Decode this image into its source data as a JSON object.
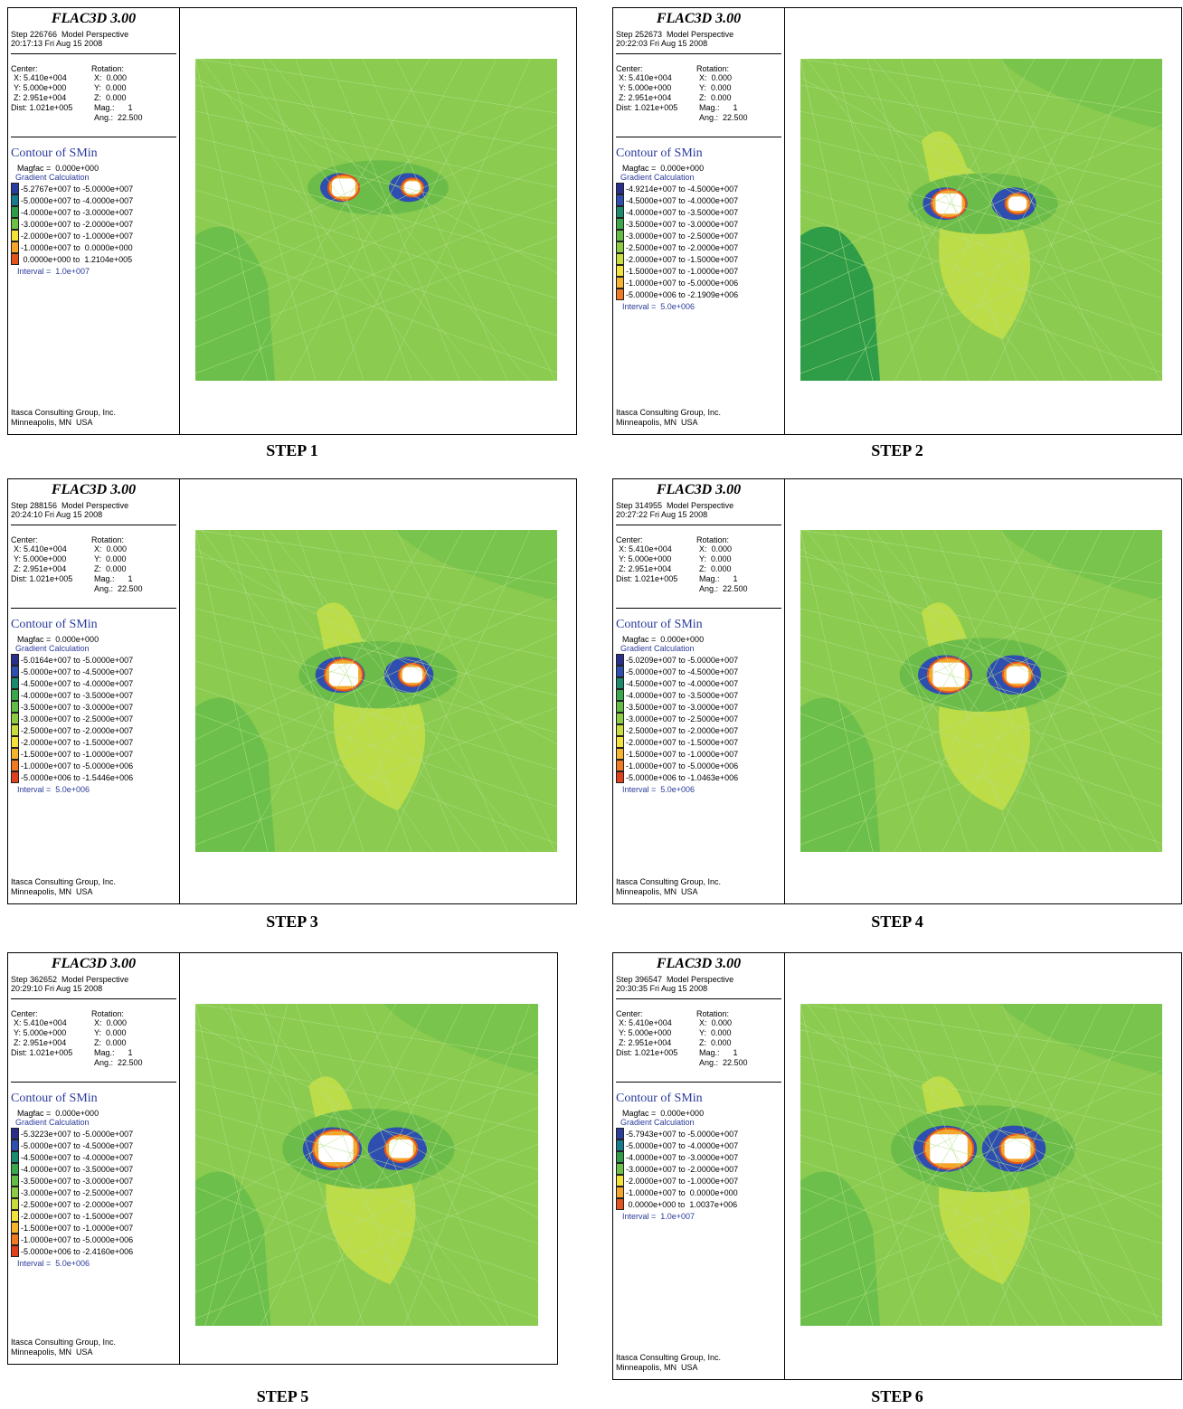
{
  "panels": [
    {
      "title": "FLAC3D 3.00",
      "step": "Step 226766  Model Perspective",
      "time": "20:17:13 Fri Aug 15 2008",
      "center_label": "Center:",
      "center": [
        "X: 5.410e+004",
        "Y: 5.000e+000",
        "Z: 2.951e+004",
        "Dist: 1.021e+005"
      ],
      "rotation_label": "Rotation:",
      "rotation": [
        "X:  0.000",
        "Y:  0.000",
        "Z:  0.000",
        "Mag.:      1",
        "Ang.:  22.500"
      ],
      "contour_title": "Contour of SMin",
      "magfac": "Magfac =  0.000e+000",
      "gradient": "Gradient Calculation",
      "legend": [
        "-5.2767e+007 to -5.0000e+007",
        "-5.0000e+007 to -4.0000e+007",
        "-4.0000e+007 to -3.0000e+007",
        "-3.0000e+007 to -2.0000e+007",
        "-2.0000e+007 to -1.0000e+007",
        "-1.0000e+007 to  0.0000e+000",
        " 0.0000e+000 to  1.2104e+005"
      ],
      "interval": "Interval =  1.0e+007",
      "company": "Itasca Consulting Group, Inc.",
      "location": "Minneapolis, MN  USA",
      "caption": "STEP 1"
    },
    {
      "title": "FLAC3D 3.00",
      "step": "Step 252673  Model Perspective",
      "time": "20:22:03 Fri Aug 15 2008",
      "center_label": "Center:",
      "center": [
        "X: 5.410e+004",
        "Y: 5.000e+000",
        "Z: 2.951e+004",
        "Dist: 1.021e+005"
      ],
      "rotation_label": "Rotation:",
      "rotation": [
        "X:  0.000",
        "Y:  0.000",
        "Z:  0.000",
        "Mag.:      1",
        "Ang.:  22.500"
      ],
      "contour_title": "Contour of SMin",
      "magfac": "Magfac =  0.000e+000",
      "gradient": "Gradient Calculation",
      "legend": [
        "-4.9214e+007 to -4.5000e+007",
        "-4.5000e+007 to -4.0000e+007",
        "-4.0000e+007 to -3.5000e+007",
        "-3.5000e+007 to -3.0000e+007",
        "-3.0000e+007 to -2.5000e+007",
        "-2.5000e+007 to -2.0000e+007",
        "-2.0000e+007 to -1.5000e+007",
        "-1.5000e+007 to -1.0000e+007",
        "-1.0000e+007 to -5.0000e+006",
        "-5.0000e+006 to -2.1909e+006"
      ],
      "interval": "Interval =  5.0e+006",
      "company": "Itasca Consulting Group, Inc.",
      "location": "Minneapolis, MN  USA",
      "caption": "STEP 2"
    },
    {
      "title": "FLAC3D 3.00",
      "step": "Step 288156  Model Perspective",
      "time": "20:24:10 Fri Aug 15 2008",
      "center_label": "Center:",
      "center": [
        "X: 5.410e+004",
        "Y: 5.000e+000",
        "Z: 2.951e+004",
        "Dist: 1.021e+005"
      ],
      "rotation_label": "Rotation:",
      "rotation": [
        "X:  0.000",
        "Y:  0.000",
        "Z:  0.000",
        "Mag.:      1",
        "Ang.:  22.500"
      ],
      "contour_title": "Contour of SMin",
      "magfac": "Magfac =  0.000e+000",
      "gradient": "Gradient Calculation",
      "legend": [
        "-5.0164e+007 to -5.0000e+007",
        "-5.0000e+007 to -4.5000e+007",
        "-4.5000e+007 to -4.0000e+007",
        "-4.0000e+007 to -3.5000e+007",
        "-3.5000e+007 to -3.0000e+007",
        "-3.0000e+007 to -2.5000e+007",
        "-2.5000e+007 to -2.0000e+007",
        "-2.0000e+007 to -1.5000e+007",
        "-1.5000e+007 to -1.0000e+007",
        "-1.0000e+007 to -5.0000e+006",
        "-5.0000e+006 to -1.5446e+006"
      ],
      "interval": "Interval =  5.0e+006",
      "company": "Itasca Consulting Group, Inc.",
      "location": "Minneapolis, MN  USA",
      "caption": "STEP 3"
    },
    {
      "title": "FLAC3D 3.00",
      "step": "Step 314955  Model Perspective",
      "time": "20:27:22 Fri Aug 15 2008",
      "center_label": "Center:",
      "center": [
        "X: 5.410e+004",
        "Y: 5.000e+000",
        "Z: 2.951e+004",
        "Dist: 1.021e+005"
      ],
      "rotation_label": "Rotation:",
      "rotation": [
        "X:  0.000",
        "Y:  0.000",
        "Z:  0.000",
        "Mag.:      1",
        "Ang.:  22.500"
      ],
      "contour_title": "Contour of SMin",
      "magfac": "Magfac =  0.000e+000",
      "gradient": "Gradient Calculation",
      "legend": [
        "-5.0209e+007 to -5.0000e+007",
        "-5.0000e+007 to -4.5000e+007",
        "-4.5000e+007 to -4.0000e+007",
        "-4.0000e+007 to -3.5000e+007",
        "-3.5000e+007 to -3.0000e+007",
        "-3.0000e+007 to -2.5000e+007",
        "-2.5000e+007 to -2.0000e+007",
        "-2.0000e+007 to -1.5000e+007",
        "-1.5000e+007 to -1.0000e+007",
        "-1.0000e+007 to -5.0000e+006",
        "-5.0000e+006 to -1.0463e+006"
      ],
      "interval": "Interval =  5.0e+006",
      "company": "Itasca Consulting Group, Inc.",
      "location": "Minneapolis, MN  USA",
      "caption": "STEP 4"
    },
    {
      "title": "FLAC3D 3.00",
      "step": "Step 362652  Model Perspective",
      "time": "20:29:10 Fri Aug 15 2008",
      "center_label": "Center:",
      "center": [
        "X: 5.410e+004",
        "Y: 5.000e+000",
        "Z: 2.951e+004",
        "Dist: 1.021e+005"
      ],
      "rotation_label": "Rotation:",
      "rotation": [
        "X:  0.000",
        "Y:  0.000",
        "Z:  0.000",
        "Mag.:      1",
        "Ang.:  22.500"
      ],
      "contour_title": "Contour of SMin",
      "magfac": "Magfac =  0.000e+000",
      "gradient": "Gradient Calculation",
      "legend": [
        "-5.3223e+007 to -5.0000e+007",
        "-5.0000e+007 to -4.5000e+007",
        "-4.5000e+007 to -4.0000e+007",
        "-4.0000e+007 to -3.5000e+007",
        "-3.5000e+007 to -3.0000e+007",
        "-3.0000e+007 to -2.5000e+007",
        "-2.5000e+007 to -2.0000e+007",
        "-2.0000e+007 to -1.5000e+007",
        "-1.5000e+007 to -1.0000e+007",
        "-1.0000e+007 to -5.0000e+006",
        "-5.0000e+006 to -2.4160e+006"
      ],
      "interval": "Interval =  5.0e+006",
      "company": "Itasca Consulting Group, Inc.",
      "location": "Minneapolis, MN  USA",
      "caption": "STEP 5"
    },
    {
      "title": "FLAC3D 3.00",
      "step": "Step 396547  Model Perspective",
      "time": "20:30:35 Fri Aug 15 2008",
      "center_label": "Center:",
      "center": [
        "X: 5.410e+004",
        "Y: 5.000e+000",
        "Z: 2.951e+004",
        "Dist: 1.021e+005"
      ],
      "rotation_label": "Rotation:",
      "rotation": [
        "X:  0.000",
        "Y:  0.000",
        "Z:  0.000",
        "Mag.:      1",
        "Ang.:  22.500"
      ],
      "contour_title": "Contour of SMin",
      "magfac": "Magfac =  0.000e+000",
      "gradient": "Gradient Calculation",
      "legend": [
        "-5.7943e+007 to -5.0000e+007",
        "-5.0000e+007 to -4.0000e+007",
        "-4.0000e+007 to -3.0000e+007",
        "-3.0000e+007 to -2.0000e+007",
        "-2.0000e+007 to -1.0000e+007",
        "-1.0000e+007 to  0.0000e+000",
        " 0.0000e+000 to  1.0037e+006"
      ],
      "interval": "Interval =  1.0e+007",
      "company": "Itasca Consulting Group, Inc.",
      "location": "Minneapolis, MN  USA",
      "caption": "STEP 6"
    }
  ]
}
